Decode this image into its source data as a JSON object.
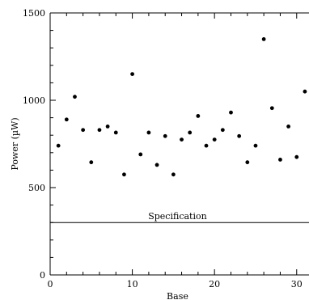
{
  "chart_data": {
    "type": "scatter",
    "title": "",
    "xlabel": "Base",
    "ylabel": "Power (µW)",
    "xlim": [
      0,
      31.5
    ],
    "ylim": [
      0,
      1500
    ],
    "x_ticks": [
      0,
      10,
      20,
      30
    ],
    "y_ticks": [
      0,
      500,
      1000,
      1500
    ],
    "grid": false,
    "series": [
      {
        "x": [
          1,
          2,
          3,
          4,
          5,
          6,
          7,
          8,
          9,
          10,
          11,
          12,
          13,
          14,
          15,
          16,
          17,
          18,
          19,
          20,
          21,
          22,
          23,
          24,
          25,
          26,
          27,
          28,
          29,
          30,
          31
        ],
        "values": [
          740,
          890,
          1020,
          830,
          645,
          830,
          850,
          815,
          575,
          1150,
          690,
          815,
          630,
          795,
          575,
          775,
          815,
          910,
          740,
          775,
          830,
          930,
          795,
          645,
          740,
          1350,
          955,
          660,
          850,
          675,
          1050
        ]
      }
    ],
    "annotations": [
      {
        "text": "Specification",
        "y": 300
      }
    ]
  }
}
